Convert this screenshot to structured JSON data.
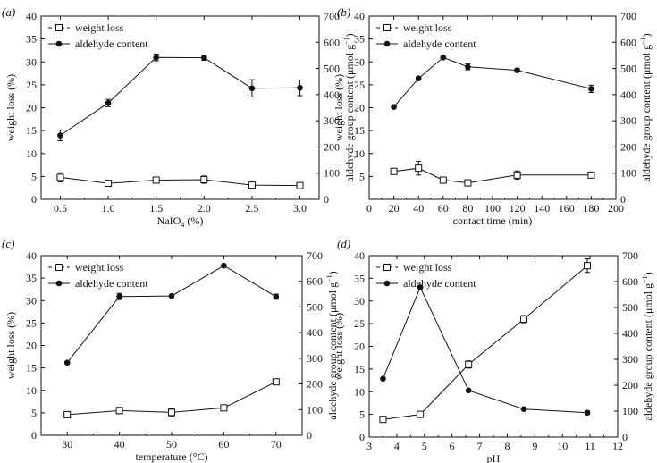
{
  "chart_data": [
    {
      "type": "line",
      "panel_label": "(a)",
      "title": "",
      "xlabel": "NaIO",
      "xlabel_sub": "4",
      "xlabel_unit": " (%)",
      "ylabel": "weight loss (%)",
      "y2label": "aldehyde group content (μmol g",
      "y2label_sup": "−1",
      "y2label_end": ")",
      "xlim": [
        0.3,
        3.2
      ],
      "ylim": [
        0,
        40
      ],
      "y2lim": [
        0,
        700
      ],
      "xticks": [
        0.5,
        1.0,
        1.5,
        2.0,
        2.5,
        3.0
      ],
      "xtick_labels": [
        "0.5",
        "1.0",
        "1.5",
        "2.0",
        "2.5",
        "3.0"
      ],
      "yticks": [
        0,
        5,
        10,
        15,
        20,
        25,
        30,
        35,
        40
      ],
      "ytick_labels": [
        "0",
        "5",
        "10",
        "15",
        "20",
        "25",
        "30",
        "35",
        "40"
      ],
      "y2ticks": [
        0,
        100,
        200,
        300,
        400,
        500,
        600,
        700
      ],
      "y2tick_labels": [
        "0",
        "100",
        "200",
        "300",
        "400",
        "500",
        "600",
        "700"
      ],
      "legend": [
        "weight loss",
        "aldehyde content"
      ],
      "legend_position": "top-left",
      "series": [
        {
          "name": "weight loss",
          "marker": "open-square",
          "axis": "left",
          "x": [
            0.5,
            1.0,
            1.5,
            2.0,
            2.5,
            3.0
          ],
          "y": [
            4.8,
            3.5,
            4.2,
            4.3,
            3.1,
            3.0
          ],
          "err": [
            1.0,
            0.4,
            0.3,
            0.8,
            0.3,
            0.3
          ]
        },
        {
          "name": "aldehyde content",
          "marker": "filled-circle",
          "axis": "right",
          "x": [
            0.5,
            1.0,
            1.5,
            2.0,
            2.5,
            3.0
          ],
          "y": [
            244,
            368,
            542,
            541,
            424,
            426
          ],
          "err": [
            20,
            14,
            13,
            10,
            33,
            30
          ]
        }
      ]
    },
    {
      "type": "line",
      "panel_label": "(b)",
      "title": "",
      "xlabel": "contact time (min)",
      "xlabel_sub": "",
      "xlabel_unit": "",
      "ylabel": "weight loss (%)",
      "y2label": "aldehyde group content (μmol g",
      "y2label_sup": "−1",
      "y2label_end": ")",
      "xlim": [
        0,
        200
      ],
      "ylim": [
        0,
        40
      ],
      "y2lim": [
        0,
        700
      ],
      "xticks": [
        0,
        20,
        40,
        60,
        80,
        100,
        120,
        140,
        160,
        180,
        200
      ],
      "xtick_labels": [
        "0",
        "20",
        "40",
        "60",
        "80",
        "100",
        "120",
        "140",
        "160",
        "180",
        "200"
      ],
      "yticks": [
        5,
        10,
        15,
        20,
        25,
        30,
        35,
        40
      ],
      "ytick_labels": [
        "5",
        "10",
        "15",
        "20",
        "25",
        "30",
        "35",
        "40"
      ],
      "y2ticks": [
        0,
        100,
        200,
        300,
        400,
        500,
        600,
        700
      ],
      "y2tick_labels": [
        "0",
        "100",
        "200",
        "300",
        "400",
        "500",
        "600",
        "700"
      ],
      "legend": [
        "weight loss",
        "aldehyde content"
      ],
      "legend_position": "top-left",
      "series": [
        {
          "name": "weight loss",
          "marker": "open-square",
          "axis": "left",
          "x": [
            20,
            40,
            60,
            80,
            120,
            180
          ],
          "y": [
            6.1,
            6.8,
            4.2,
            3.6,
            5.3,
            5.3
          ],
          "err": [
            0.4,
            1.5,
            0.3,
            0.3,
            0.9,
            0.3
          ]
        },
        {
          "name": "aldehyde content",
          "marker": "filled-circle",
          "axis": "right",
          "x": [
            20,
            40,
            60,
            80,
            120,
            180
          ],
          "y": [
            353,
            462,
            542,
            506,
            493,
            422
          ],
          "err": [
            4,
            5,
            4,
            11,
            7,
            14
          ]
        }
      ]
    },
    {
      "type": "line",
      "panel_label": "(c)",
      "title": "",
      "xlabel": "temperature (°C)",
      "xlabel_sub": "",
      "xlabel_unit": "",
      "ylabel": "weight loss (%)",
      "y2label": "aldehyde group content (μmol g",
      "y2label_sup": "−1",
      "y2label_end": ")",
      "xlim": [
        25,
        75
      ],
      "ylim": [
        0,
        40
      ],
      "y2lim": [
        0,
        700
      ],
      "xticks": [
        30,
        40,
        50,
        60,
        70
      ],
      "xtick_labels": [
        "30",
        "40",
        "50",
        "60",
        "70"
      ],
      "yticks": [
        0,
        5,
        10,
        15,
        20,
        25,
        30,
        35,
        40
      ],
      "ytick_labels": [
        "0",
        "5",
        "10",
        "15",
        "20",
        "25",
        "30",
        "35",
        "40"
      ],
      "y2ticks": [
        0,
        100,
        200,
        300,
        400,
        500,
        600,
        700
      ],
      "y2tick_labels": [
        "0",
        "100",
        "200",
        "300",
        "400",
        "500",
        "600",
        "700"
      ],
      "legend": [
        "weight loss",
        "aldehyde content"
      ],
      "legend_position": "top-left",
      "series": [
        {
          "name": "weight loss",
          "marker": "open-square",
          "axis": "left",
          "x": [
            30,
            40,
            50,
            60,
            70
          ],
          "y": [
            4.6,
            5.5,
            5.1,
            6.1,
            11.9
          ],
          "err": [
            0.3,
            0.7,
            0.8,
            0.5,
            0.4
          ]
        },
        {
          "name": "aldehyde content",
          "marker": "filled-circle",
          "axis": "right",
          "x": [
            30,
            40,
            50,
            60,
            70
          ],
          "y": [
            283,
            541,
            543,
            661,
            540
          ],
          "err": [
            4,
            12,
            4,
            4,
            10
          ]
        }
      ]
    },
    {
      "type": "line",
      "panel_label": "(d)",
      "title": "",
      "xlabel": "pH",
      "xlabel_sub": "",
      "xlabel_unit": "",
      "ylabel": "weight loss (%)",
      "y2label": "aldehyde group content (μmol g",
      "y2label_sup": "−1",
      "y2label_end": ")",
      "xlim": [
        3,
        12
      ],
      "ylim": [
        0,
        40
      ],
      "y2lim": [
        0,
        700
      ],
      "xticks": [
        3,
        4,
        5,
        6,
        7,
        8,
        9,
        10,
        11,
        12
      ],
      "xtick_labels": [
        "3",
        "4",
        "5",
        "6",
        "7",
        "8",
        "9",
        "10",
        "11",
        "12"
      ],
      "yticks": [
        0,
        5,
        10,
        15,
        20,
        25,
        30,
        35,
        40
      ],
      "ytick_labels": [
        "0",
        "5",
        "10",
        "15",
        "20",
        "25",
        "30",
        "35",
        "40"
      ],
      "y2ticks": [
        0,
        100,
        200,
        300,
        400,
        500,
        600,
        700
      ],
      "y2tick_labels": [
        "0",
        "100",
        "200",
        "300",
        "400",
        "500",
        "600",
        "700"
      ],
      "legend": [
        "weight loss",
        "aldehyde content"
      ],
      "legend_position": "top-left",
      "series": [
        {
          "name": "weight loss",
          "marker": "open-square",
          "axis": "left",
          "x": [
            3.5,
            4.85,
            6.6,
            8.6,
            10.9
          ],
          "y": [
            3.9,
            5.0,
            16.0,
            26.0,
            37.8
          ],
          "err": [
            0.4,
            0.4,
            0.8,
            0.8,
            1.5
          ]
        },
        {
          "name": "aldehyde content",
          "marker": "filled-circle",
          "axis": "right",
          "x": [
            3.5,
            4.85,
            6.6,
            8.6,
            10.9
          ],
          "y": [
            225,
            578,
            180,
            108,
            94
          ],
          "err": [
            3,
            3,
            3,
            3,
            6
          ]
        }
      ]
    }
  ]
}
